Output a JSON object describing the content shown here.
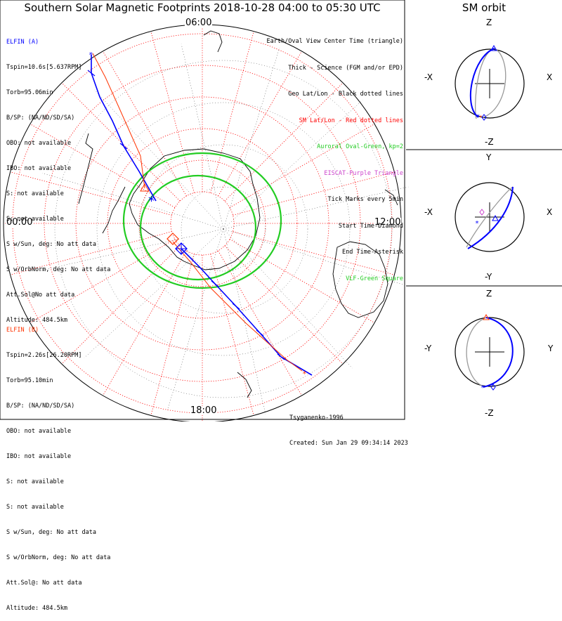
{
  "title": "Southern Solar Magnetic Footprints 2018-10-28 04:00 to 05:30 UTC",
  "orbit_title": "SM orbit",
  "time_labels": {
    "top": "06:00",
    "left": "00:00",
    "right": "12:00",
    "bottom": "18:00"
  },
  "colors": {
    "sc_a": "#0000ff",
    "sc_b": "#ff3300",
    "oval": "#22cc22",
    "grid_red": "#ff0000",
    "grid_black": "#000000",
    "purple": "#cc44cc"
  },
  "elfin_a": {
    "name": "ELFIN (A)",
    "color": "#0000ff",
    "lines": [
      "Tspin=10.6s[5.637RPM]",
      "Torb=95.06min",
      "B/SP: (NA/ND/SD/SA)",
      "OBO: not available",
      "IBO: not available",
      "S: not available",
      "S: not available",
      "S w/Sun, deg: No att data",
      "S w/OrbNorm, deg: No att data",
      "Att.Sol@No att data",
      "Altitude: 484.5km"
    ]
  },
  "elfin_b": {
    "name": "ELFIN (B)",
    "color": "#ff3300",
    "lines": [
      "Tspin=2.26s[26.20RPM]",
      "Torb=95.10min",
      "B/SP: (NA/ND/SD/SA)",
      "OBO: not available",
      "IBO: not available",
      "S: not available",
      "S: not available",
      "S w/Sun, deg: No att data",
      "S w/OrbNorm, deg: No att data",
      "Att.Sol@: No att data",
      "Altitude: 484.5km"
    ]
  },
  "legend": [
    {
      "text": "Earth/Oval View Center Time (triangle)",
      "color": "#000000"
    },
    {
      "text": "Thick - Science (FGM and/or EPD)",
      "color": "#000000"
    },
    {
      "text": "Geo Lat/Lon - Black dotted lines",
      "color": "#000000"
    },
    {
      "text": "SM Lat/Lon - Red dotted lines",
      "color": "#ff0000"
    },
    {
      "text": "Auroral Oval-Green, kp=2",
      "color": "#22cc22"
    },
    {
      "text": "EISCAT-Purple Triangle",
      "color": "#cc44cc"
    },
    {
      "text": "Tick Marks every 5min",
      "color": "#000000"
    },
    {
      "text": "Start Time-Diamond",
      "color": "#000000"
    },
    {
      "text": "End Time-Asterisk",
      "color": "#000000"
    },
    {
      "text": "VLF-Green Square",
      "color": "#22cc22"
    }
  ],
  "credits": {
    "author": "Tsyganenko-1996",
    "created": "Created: Sun Jan 29 09:34:14 2023"
  },
  "orbit_panels": [
    {
      "top": "Z",
      "bottom": "-Z",
      "left": "-X",
      "right": "X"
    },
    {
      "top": "Y",
      "bottom": "-Y",
      "left": "-X",
      "right": "X"
    },
    {
      "top": "Z",
      "bottom": "-Z",
      "left": "-Y",
      "right": "Y"
    }
  ]
}
